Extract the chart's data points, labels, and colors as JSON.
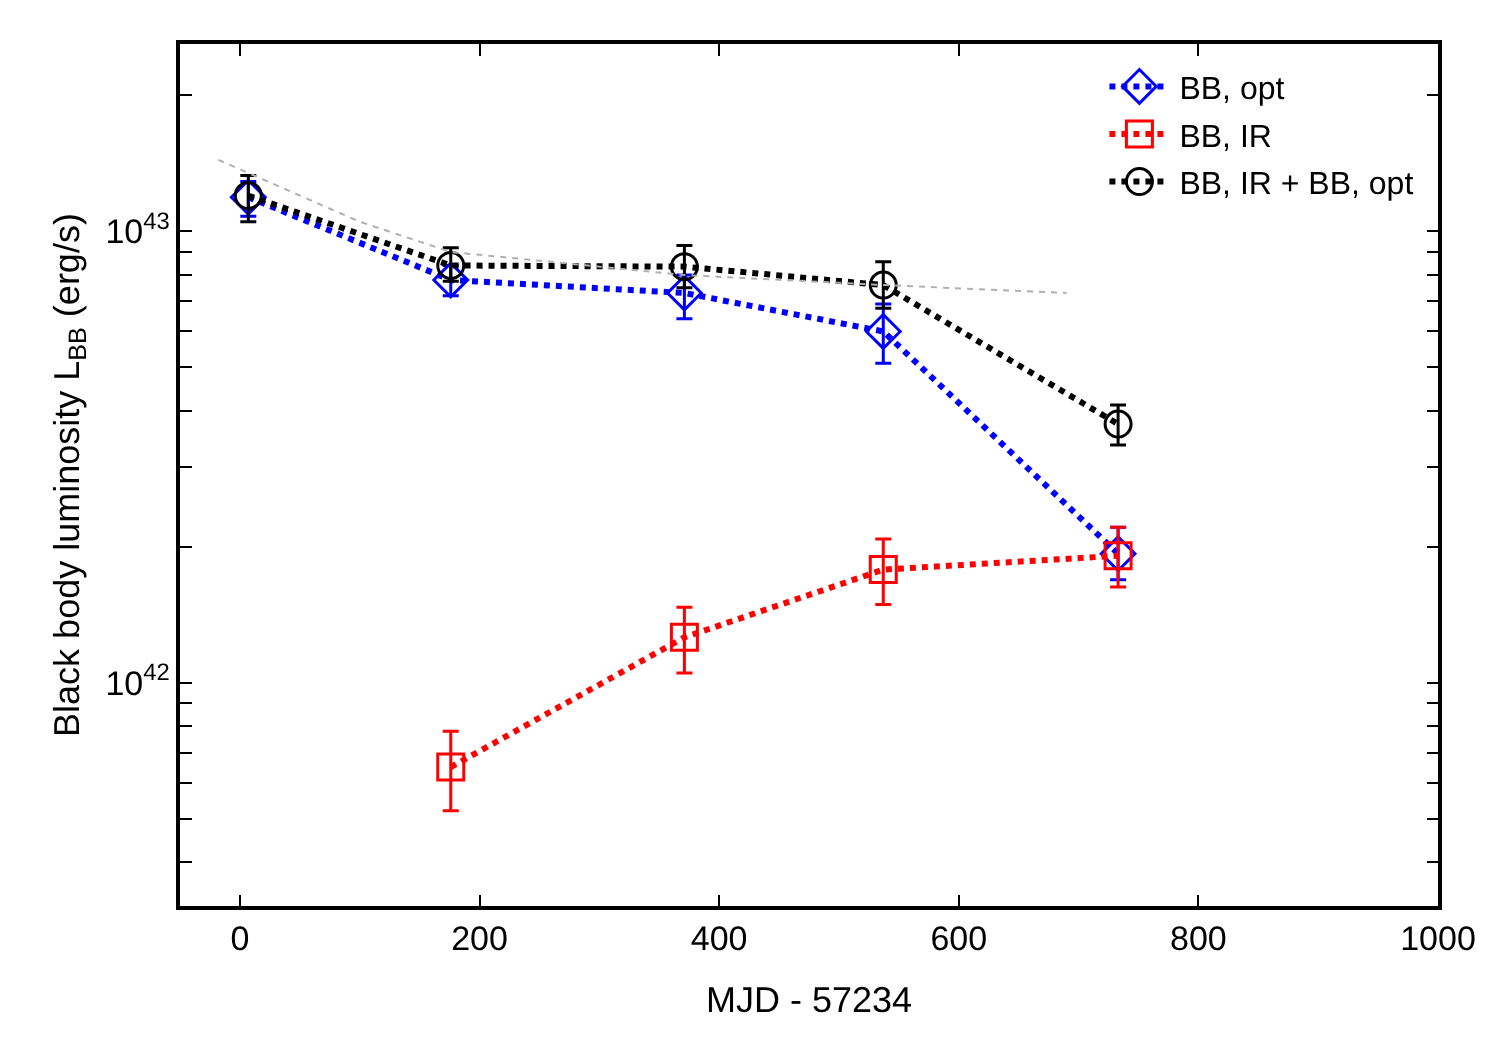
{
  "chart_data": {
    "type": "line",
    "xlabel": "MJD - 57234",
    "ylabel": "Black body luminosity L$_{BB}$ (erg/s)",
    "xlim": [
      -50,
      1000
    ],
    "xticks": [
      0,
      200,
      400,
      600,
      800,
      1000
    ],
    "ylim": [
      3.2e+41,
      2.6e+43
    ],
    "log": true,
    "yticks": [
      {
        "value": 4e+41,
        "label": null
      },
      {
        "value": 5e+41,
        "label": null
      },
      {
        "value": 6e+41,
        "label": null
      },
      {
        "value": 7e+41,
        "label": null
      },
      {
        "value": 8e+41,
        "label": null
      },
      {
        "value": 9e+41,
        "label": null
      },
      {
        "value": 1e+42,
        "label": "10$^{42}$"
      },
      {
        "value": 2e+42,
        "label": null
      },
      {
        "value": 3e+42,
        "label": null
      },
      {
        "value": 4e+42,
        "label": null
      },
      {
        "value": 5e+42,
        "label": null
      },
      {
        "value": 6e+42,
        "label": null
      },
      {
        "value": 7e+42,
        "label": null
      },
      {
        "value": 8e+42,
        "label": null
      },
      {
        "value": 9e+42,
        "label": null
      },
      {
        "value": 1e+43,
        "label": "10$^{43}$"
      },
      {
        "value": 2e+43,
        "label": null
      }
    ],
    "legend": "top right",
    "line_style": "dotted",
    "series": [
      {
        "name": "BB, opt",
        "color": "#0000ff",
        "marker": "diamond",
        "x": [
          7,
          176,
          371,
          537,
          733
        ],
        "values": [
          1.19e+43,
          7.8e+42,
          7.3e+42,
          6e+42,
          1.93e+42
        ],
        "errors": [
          [
            1.08e+43,
            1.29e+43
          ],
          [
            7.2e+42,
            8.4e+42
          ],
          [
            6.4e+42,
            8e+42
          ],
          [
            5.1e+42,
            6.9e+42
          ],
          [
            1.69e+42,
            2.21e+42
          ]
        ]
      },
      {
        "name": "BB, IR",
        "color": "#ff0000",
        "marker": "square",
        "x": [
          176,
          371,
          537,
          733
        ],
        "values": [
          6.5e+41,
          1.26e+42,
          1.78e+42,
          1.91e+42
        ],
        "errors": [
          [
            5.2e+41,
            7.8e+41
          ],
          [
            1.05e+42,
            1.47e+42
          ],
          [
            1.49e+42,
            2.08e+42
          ],
          [
            1.63e+42,
            2.21e+42
          ]
        ]
      },
      {
        "name": "BB, IR + BB, opt",
        "color": "#000000",
        "marker": "circle",
        "x": [
          7,
          176,
          371,
          537,
          733
        ],
        "values": [
          1.2e+43,
          8.4e+42,
          8.35e+42,
          7.6e+42,
          3.74e+42
        ],
        "errors": [
          [
            1.05e+43,
            1.33e+43
          ],
          [
            7.75e+42,
            9.2e+42
          ],
          [
            7.5e+42,
            9.3e+42
          ],
          [
            6.75e+42,
            8.56e+42
          ],
          [
            3.36e+42,
            4.12e+42
          ]
        ]
      },
      {
        "color": "#b0b0b0",
        "marker": "none",
        "line_style": "dotted",
        "x": [
          -18,
          100,
          176,
          371,
          538,
          690
        ],
        "values": [
          1.44e+43,
          1.05e+43,
          9e+42,
          8e+42,
          7.6e+42,
          7.3e+42
        ]
      }
    ]
  }
}
